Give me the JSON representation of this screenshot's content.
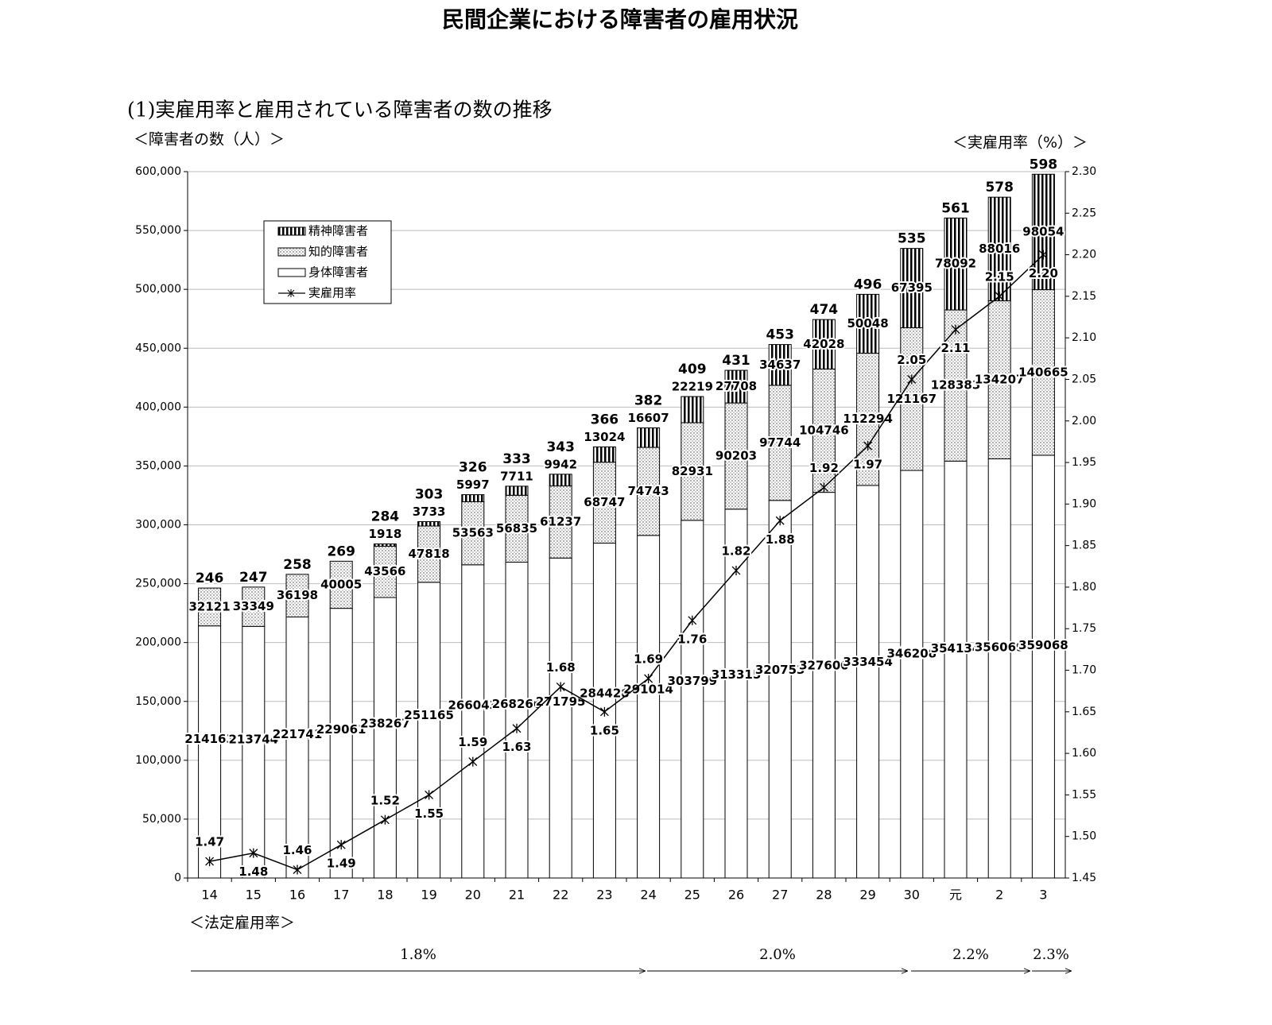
{
  "chart_data": {
    "type": "bar",
    "title": "民間企業における障害者の雇用状況",
    "subtitle": "(1)実雇用率と雇用されている障害者の数の推移",
    "y_label": "＜障害者の数（人）＞",
    "y2_label": "＜実雇用率（%）＞",
    "categories": [
      "14",
      "15",
      "16",
      "17",
      "18",
      "19",
      "20",
      "21",
      "22",
      "23",
      "24",
      "25",
      "26",
      "27",
      "28",
      "29",
      "30",
      "元",
      "2",
      "3"
    ],
    "series": [
      {
        "name": "精神障害者",
        "color": "#000000",
        "values": [
          null,
          null,
          null,
          null,
          1918,
          3733,
          5997,
          7711,
          9942,
          13024,
          16607,
          22219,
          27708,
          34637,
          42028,
          50048,
          67395,
          78092,
          88016,
          98054
        ]
      },
      {
        "name": "知的障害者",
        "color": "#b0b0b0",
        "values": [
          32121,
          33349,
          36198,
          40005,
          43566,
          47818,
          53563,
          56835,
          61237,
          68747,
          74743,
          82931,
          90203,
          97744,
          104746,
          112294,
          121167,
          128383,
          134207,
          140665
        ]
      },
      {
        "name": "身体障害者",
        "color": "#ffffff",
        "values": [
          214163,
          213744,
          221741,
          229061,
          238267,
          251165,
          266043,
          268266,
          271795,
          284428,
          291014,
          303799,
          313315,
          320753,
          327600,
          333454,
          346208,
          354134,
          356069,
          359068
        ]
      },
      {
        "name": "実雇用率",
        "type": "line",
        "axis": "y2",
        "color": "#000000",
        "values": [
          1.47,
          1.48,
          1.46,
          1.49,
          1.52,
          1.55,
          1.59,
          1.63,
          1.68,
          1.65,
          1.69,
          1.76,
          1.82,
          1.88,
          1.92,
          1.97,
          2.05,
          2.11,
          2.15,
          2.2
        ],
        "value_labels": [
          "1.47",
          "1.48",
          "1.46",
          "1.49",
          "1.52",
          "1.55",
          "1.59",
          "1.63",
          "1.68",
          "1.65",
          "1.69",
          "1.76",
          "1.82",
          "1.88",
          "1.92",
          "1.97",
          "2.05",
          "2.11",
          "2.15",
          "2.20"
        ]
      }
    ],
    "totals": [
      246,
      247,
      258,
      269,
      284,
      303,
      326,
      333,
      343,
      366,
      382,
      409,
      431,
      453,
      474,
      496,
      535,
      561,
      578,
      598
    ],
    "ylim": [
      0,
      600000
    ],
    "yticks": [
      0,
      {
        "value": 50000,
        "label": "50,000"
      },
      {
        "value": 100000,
        "label": "100,000"
      },
      {
        "value": 150000,
        "label": "150,000"
      },
      {
        "value": 200000,
        "label": "200,000"
      },
      {
        "value": 250000,
        "label": "250,000"
      },
      {
        "value": 300000,
        "label": "300,000"
      },
      {
        "value": 350000,
        "label": "350,000"
      },
      {
        "value": 400000,
        "label": "400,000"
      },
      {
        "value": 450000,
        "label": "450,000"
      },
      {
        "value": 500000,
        "label": "500,000"
      },
      {
        "value": 550000,
        "label": "550,000"
      },
      {
        "value": 600000,
        "label": "600,000"
      }
    ],
    "y2lim": [
      1.45,
      2.3
    ],
    "y2ticks": [
      1.45,
      {
        "value": 1.5,
        "label": "1.50"
      },
      1.55,
      {
        "value": 1.6,
        "label": "1.60"
      },
      1.65,
      {
        "value": 1.7,
        "label": "1.70"
      },
      1.75,
      {
        "value": 1.8,
        "label": "1.80"
      },
      1.85,
      {
        "value": 1.9,
        "label": "1.90"
      },
      1.95,
      {
        "value": 2.0,
        "label": "2.00"
      },
      2.05,
      {
        "value": 2.1,
        "label": "2.10"
      },
      2.15,
      {
        "value": 2.2,
        "label": "2.20"
      },
      2.25,
      {
        "value": 2.3,
        "label": "2.30"
      }
    ],
    "grid": true,
    "legend": "upper left",
    "statutory_label": "＜法定雇用率＞",
    "statutory_rates": [
      "1.8%",
      "2.0%",
      "2.2%",
      "2.3%"
    ]
  }
}
